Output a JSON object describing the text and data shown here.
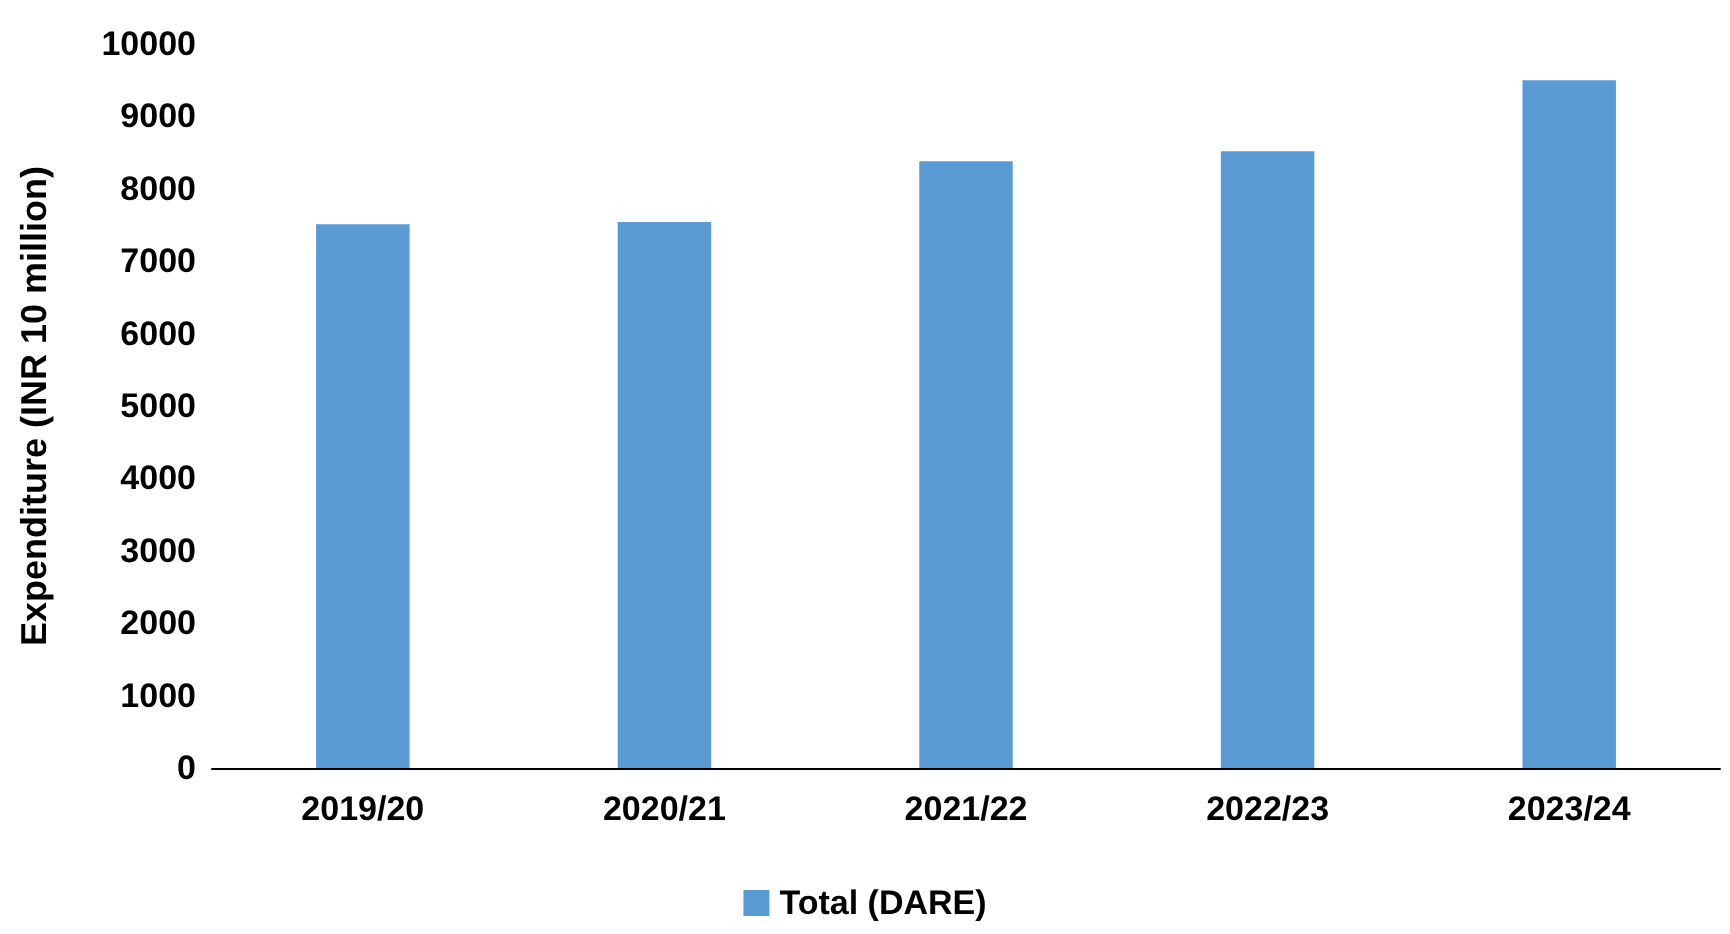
{
  "chart_data": {
    "type": "bar",
    "ylabel": "Expenditure (INR 10 million)",
    "categories": [
      "2019/20",
      "2020/21",
      "2021/22",
      "2022/23",
      "2023/24"
    ],
    "series": [
      {
        "name": "Total (DARE)",
        "color": "#5b9bd5",
        "values": [
          7510,
          7540,
          8380,
          8520,
          9500
        ]
      }
    ],
    "ylim": [
      0,
      10000
    ],
    "yticks": [
      0,
      1000,
      2000,
      3000,
      4000,
      5000,
      6000,
      7000,
      8000,
      9000,
      10000
    ],
    "grid": false,
    "legend": "bottom"
  }
}
